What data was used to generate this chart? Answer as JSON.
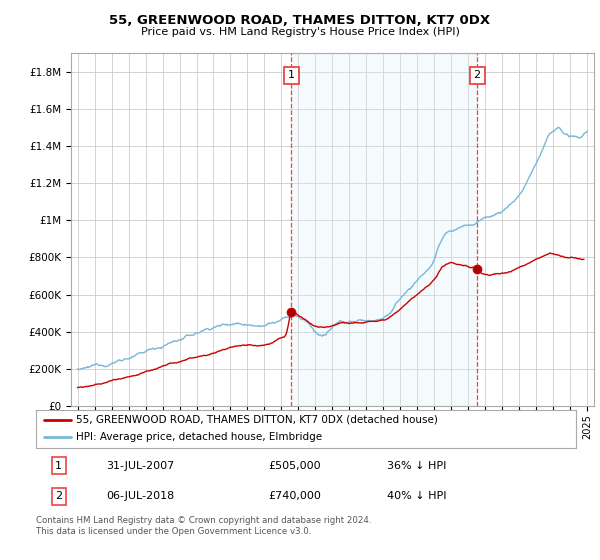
{
  "title": "55, GREENWOOD ROAD, THAMES DITTON, KT7 0DX",
  "subtitle": "Price paid vs. HM Land Registry's House Price Index (HPI)",
  "legend_line1": "55, GREENWOOD ROAD, THAMES DITTON, KT7 0DX (detached house)",
  "legend_line2": "HPI: Average price, detached house, Elmbridge",
  "transaction1_date": "31-JUL-2007",
  "transaction1_price": "£505,000",
  "transaction1_hpi": "36% ↓ HPI",
  "transaction2_date": "06-JUL-2018",
  "transaction2_price": "£740,000",
  "transaction2_hpi": "40% ↓ HPI",
  "footnote": "Contains HM Land Registry data © Crown copyright and database right 2024.\nThis data is licensed under the Open Government Licence v3.0.",
  "hpi_color": "#7ab8d9",
  "hpi_fill_color": "#daeef7",
  "price_color": "#cc0000",
  "vline_color": "#ee4444",
  "grid_color": "#cccccc",
  "background_color": "#ffffff",
  "ylim": [
    0,
    1900000
  ],
  "yticks": [
    0,
    200000,
    400000,
    600000,
    800000,
    1000000,
    1200000,
    1400000,
    1600000,
    1800000
  ],
  "ytick_labels": [
    "£0",
    "£200K",
    "£400K",
    "£600K",
    "£800K",
    "£1M",
    "£1.2M",
    "£1.4M",
    "£1.6M",
    "£1.8M"
  ],
  "transaction1_year": 2007.58,
  "transaction2_year": 2018.52,
  "transaction1_price_val": 505000,
  "transaction2_price_val": 740000
}
